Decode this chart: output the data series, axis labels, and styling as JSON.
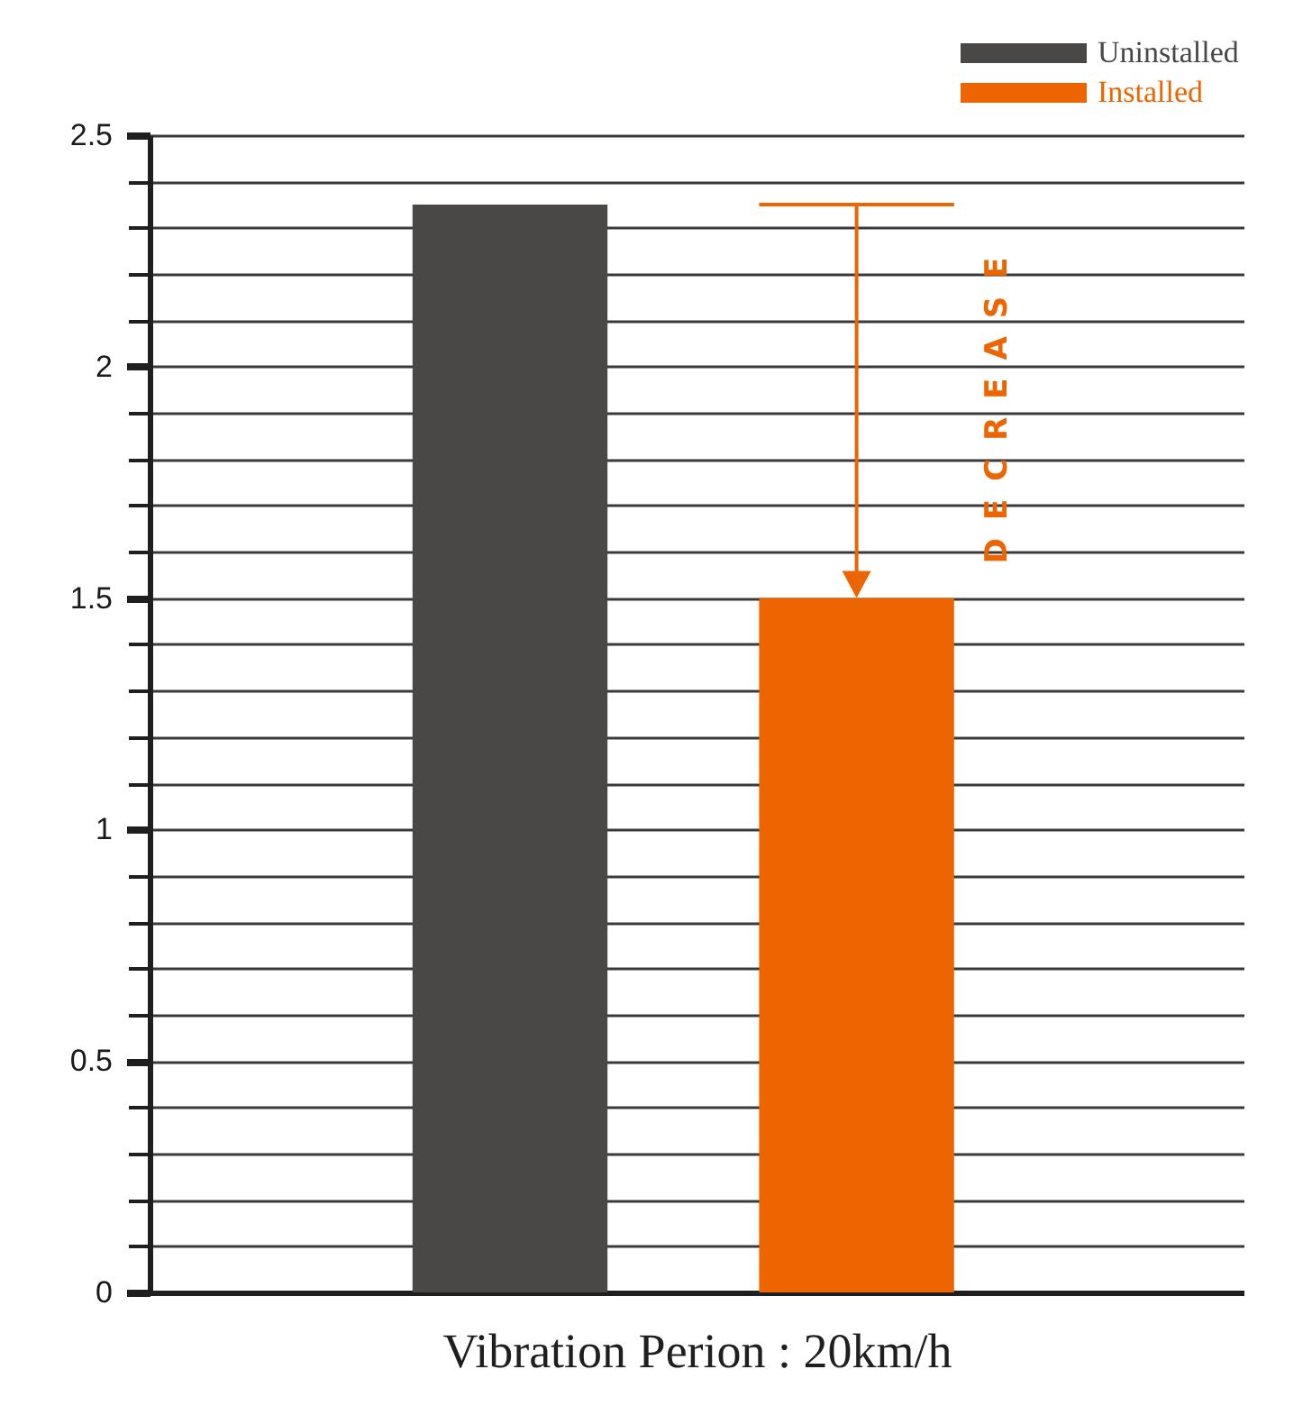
{
  "chart_data": {
    "type": "bar",
    "xlabel": "Vibration Perion : 20km/h",
    "categories": [
      null
    ],
    "series": [
      {
        "name": "Uninstalled",
        "color": "#4a4846",
        "values": [
          2.35
        ]
      },
      {
        "name": "Installed",
        "color": "#ec6500",
        "values": [
          1.5
        ]
      }
    ],
    "ylim": [
      0,
      2.5
    ],
    "yticks": [
      0,
      {
        "value": 0.1,
        "label": null
      },
      {
        "value": 0.2,
        "label": null
      },
      {
        "value": 0.3,
        "label": null
      },
      {
        "value": 0.4,
        "label": null
      },
      0.5,
      {
        "value": 0.6,
        "label": null
      },
      {
        "value": 0.7,
        "label": null
      },
      {
        "value": 0.8,
        "label": null
      },
      {
        "value": 0.9,
        "label": null
      },
      1,
      {
        "value": 1.1,
        "label": null
      },
      {
        "value": 1.2,
        "label": null
      },
      {
        "value": 1.3,
        "label": null
      },
      {
        "value": 1.4,
        "label": null
      },
      1.5,
      {
        "value": 1.6,
        "label": null
      },
      {
        "value": 1.7,
        "label": null
      },
      {
        "value": 1.8,
        "label": null
      },
      {
        "value": 1.9,
        "label": null
      },
      2,
      {
        "value": 2.1,
        "label": null
      },
      {
        "value": 2.2,
        "label": null
      },
      {
        "value": 2.3,
        "label": null
      },
      {
        "value": 2.4,
        "label": null
      },
      2.5
    ],
    "grid": "y",
    "legend": "top right",
    "annotations": [
      "DECREASE"
    ]
  }
}
